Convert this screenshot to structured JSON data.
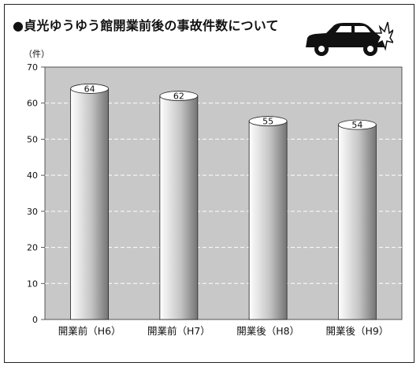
{
  "title": "●貞光ゆうゆう館開業前後の事故件数について",
  "unit_label": "（件）",
  "icons": {
    "car": "car-crash-icon"
  },
  "colors": {
    "plot_bg": "#c8c8c8",
    "grid": "#ffffff",
    "bar_light": "#ffffff",
    "bar_dark": "#7a7a7a"
  },
  "chart_data": {
    "type": "bar",
    "title": "貞光ゆうゆう館開業前後の事故件数について",
    "ylabel": "（件）",
    "xlabel": "",
    "categories": [
      "開業前（H6）",
      "開業前（H7）",
      "開業後（H8）",
      "開業後（H9）"
    ],
    "values": [
      64,
      62,
      55,
      54
    ],
    "ylim": [
      0,
      70
    ],
    "yticks": [
      0,
      10,
      20,
      30,
      40,
      50,
      60,
      70
    ],
    "grid": true,
    "bar_style": "3d-cylinder"
  }
}
